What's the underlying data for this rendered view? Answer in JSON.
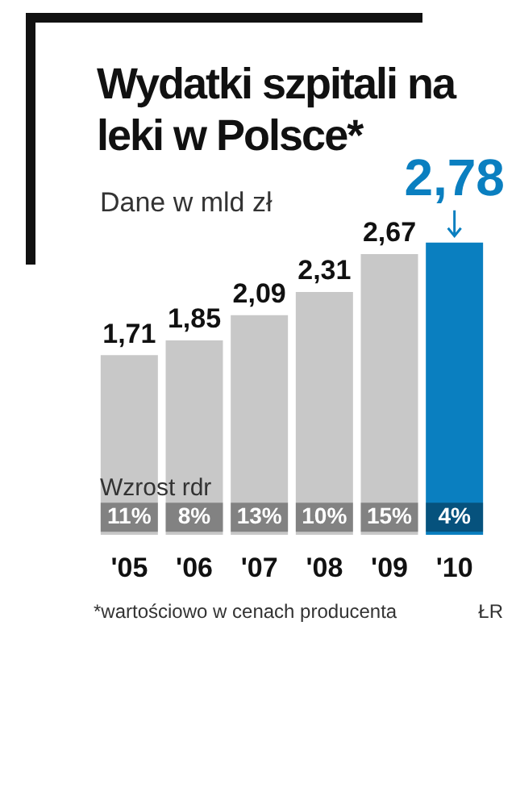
{
  "chart_data": {
    "type": "bar",
    "title": "Wydatki szpitali na leki w Polsce*",
    "subtitle": "Dane w mld zł",
    "categories": [
      "'05",
      "'06",
      "'07",
      "'08",
      "'09",
      "'10"
    ],
    "values": [
      1.71,
      1.85,
      2.09,
      2.31,
      2.67,
      2.78
    ],
    "colors": [
      "#c8c8c8",
      "#c8c8c8",
      "#c8c8c8",
      "#c8c8c8",
      "#c8c8c8",
      "#0a7fc0"
    ],
    "value_labels": [
      "1,71",
      "1,85",
      "2,09",
      "2,31",
      "2,67",
      "2,78"
    ],
    "annotations": [
      "Wzrost rdr",
      {
        "text": "11%",
        "x": "'05"
      },
      {
        "text": "8%",
        "x": "'06"
      },
      {
        "text": "13%",
        "x": "'07"
      },
      {
        "text": "10%",
        "x": "'08"
      },
      {
        "text": "15%",
        "x": "'09"
      },
      {
        "text": "4%",
        "x": "'10"
      },
      "*wartościowo w cenach producenta",
      "ŁR"
    ],
    "grid": false,
    "legend": false
  }
}
